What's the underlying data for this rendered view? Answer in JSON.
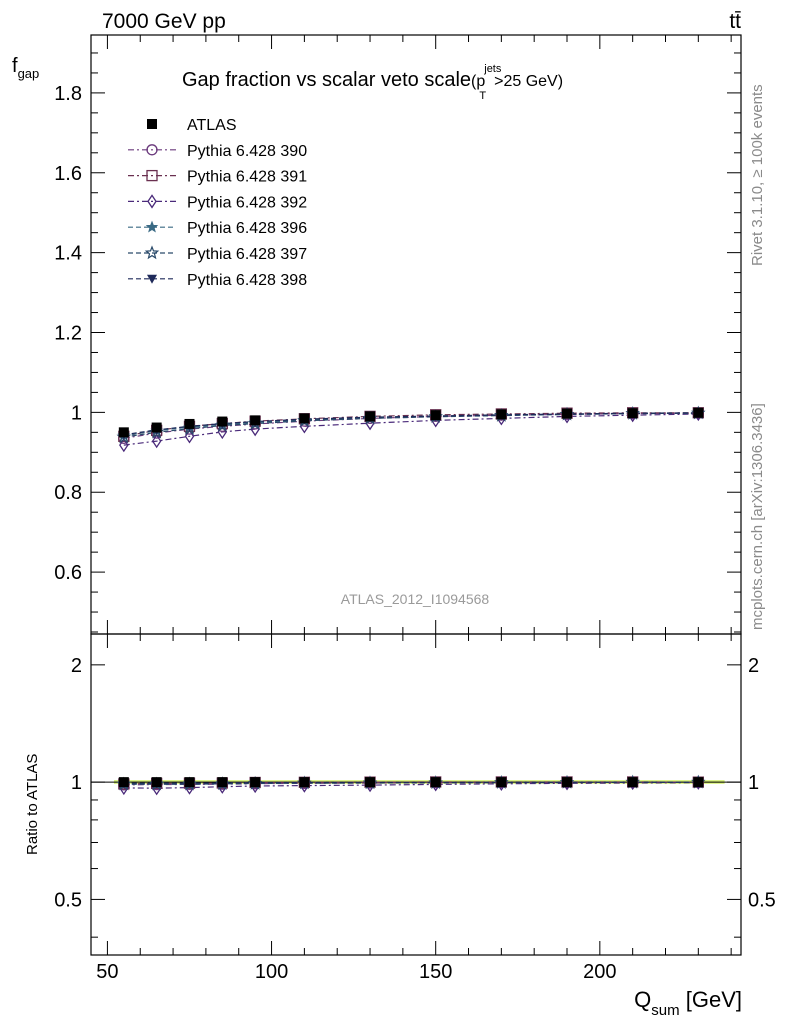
{
  "header": {
    "energy_label": "7000 GeV pp",
    "process_label": "tt̄",
    "rivet_label": "Rivet 3.1.10, ≥ 100k events",
    "mcplots_label": "mcplots.cern.ch [arXiv:1306.3436]",
    "analysis_label": "ATLAS_2012_I1094568"
  },
  "chart_data": {
    "type": "line",
    "title": "Gap fraction vs scalar veto scale",
    "title_suffix": {
      "open": "(p",
      "sup": "jets",
      "sub": "T",
      "close": ">25 GeV)"
    },
    "ylabel_main": "f",
    "ylabel_main_sub": "gap",
    "ylabel_ratio": "Ratio to ATLAS",
    "xlabel": "Q",
    "xlabel_sub": "sum",
    "xlabel_unit": " [GeV]",
    "xlim": [
      45,
      243
    ],
    "ylim_main": [
      0.445,
      1.945
    ],
    "ylim_ratio": [
      0.36,
      2.4
    ],
    "ratio_scale": "log",
    "x_ticks": [
      50,
      100,
      150,
      200
    ],
    "y_ticks_main": [
      0.6,
      0.8,
      1,
      1.2,
      1.4,
      1.6,
      1.8
    ],
    "y_ticks_ratio": [
      0.5,
      1,
      2
    ],
    "legend_position": "top-left",
    "x": [
      55,
      65,
      75,
      85,
      95,
      110,
      130,
      150,
      170,
      190,
      210,
      230
    ],
    "data": {
      "name": "ATLAS",
      "values": [
        0.95,
        0.962,
        0.971,
        0.977,
        0.98,
        0.985,
        0.99,
        0.993,
        0.995,
        0.997,
        0.998,
        0.999
      ]
    },
    "series": [
      {
        "name": "Pythia 6.428 390",
        "marker": "circle-open",
        "color": "#6b3a7d",
        "values": [
          0.935,
          0.948,
          0.958,
          0.965,
          0.971,
          0.978,
          0.985,
          0.99,
          0.993,
          0.995,
          0.997,
          0.998
        ]
      },
      {
        "name": "Pythia 6.428 391",
        "marker": "square-open",
        "color": "#6a3050",
        "values": [
          0.94,
          0.955,
          0.965,
          0.972,
          0.978,
          0.984,
          0.99,
          0.994,
          0.996,
          0.998,
          0.999,
          0.999
        ]
      },
      {
        "name": "Pythia 6.428 392",
        "marker": "diamond-open",
        "color": "#4a2a7a",
        "values": [
          0.918,
          0.928,
          0.94,
          0.951,
          0.958,
          0.965,
          0.973,
          0.98,
          0.985,
          0.99,
          0.993,
          0.996
        ]
      },
      {
        "name": "Pythia 6.428 396",
        "marker": "star-filled",
        "color": "#3a6a84",
        "values": [
          0.942,
          0.954,
          0.963,
          0.97,
          0.975,
          0.981,
          0.986,
          0.99,
          0.993,
          0.995,
          0.997,
          0.998
        ]
      },
      {
        "name": "Pythia 6.428 397",
        "marker": "star-open",
        "color": "#2a4a6a",
        "values": [
          0.938,
          0.95,
          0.959,
          0.967,
          0.972,
          0.979,
          0.985,
          0.989,
          0.992,
          0.995,
          0.997,
          0.998
        ]
      },
      {
        "name": "Pythia 6.428 398",
        "marker": "triangle-down-filled",
        "color": "#1f2a5a",
        "values": [
          0.944,
          0.956,
          0.965,
          0.972,
          0.977,
          0.983,
          0.988,
          0.991,
          0.994,
          0.996,
          0.998,
          0.999
        ]
      }
    ]
  }
}
